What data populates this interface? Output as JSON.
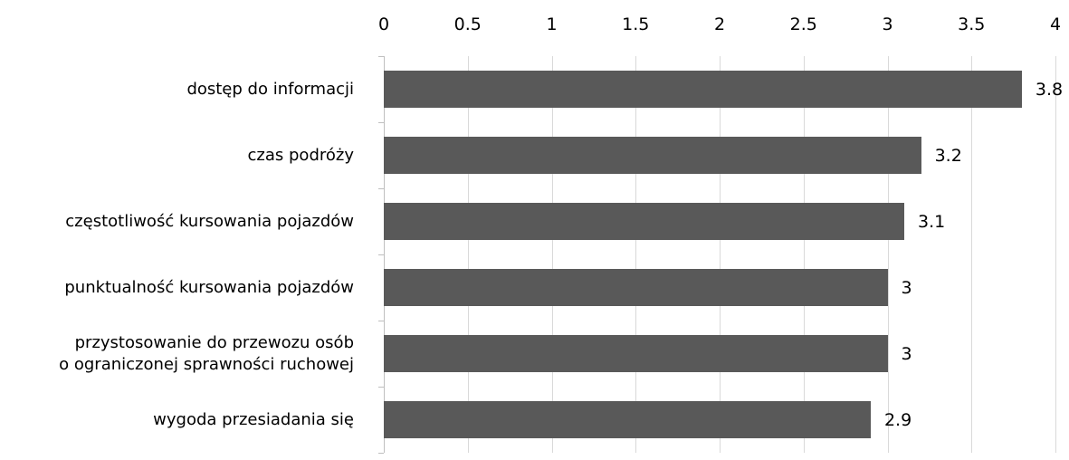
{
  "chart_data": {
    "type": "bar",
    "orientation": "horizontal",
    "categories": [
      "dostęp do informacji",
      "czas podróży",
      "częstotliwość kursowania pojazdów",
      "punktualność kursowania pojazdów",
      "przystosowanie do przewozu osób\no ograniczonej sprawności ruchowej",
      "wygoda przesiadania się"
    ],
    "values": [
      3.8,
      3.2,
      3.1,
      3,
      3,
      2.9
    ],
    "color": "#595959",
    "xlim": [
      0,
      4
    ],
    "xticks": [
      0,
      0.5,
      1,
      1.5,
      2,
      2.5,
      3,
      3.5,
      4
    ],
    "grid": true
  }
}
